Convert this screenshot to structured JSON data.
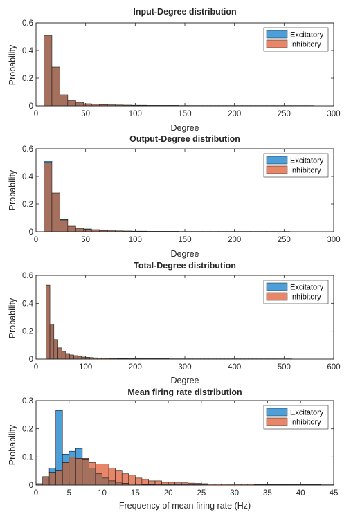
{
  "colors": {
    "excitatory": "#4c9fd8",
    "inhibitory": "#e8866a",
    "overlap": "#a5705e",
    "axis": "#262626"
  },
  "chart_data": [
    {
      "type": "bar",
      "title": "Input-Degree distribution",
      "xlabel": "Degree",
      "ylabel": "Probability",
      "xlim": [
        0,
        300
      ],
      "ylim": [
        0,
        0.6
      ],
      "xticks": [
        "0",
        "50",
        "100",
        "150",
        "200",
        "250",
        "300"
      ],
      "yticks": [
        "0",
        "0.2",
        "0.4",
        "0.6"
      ],
      "legend": {
        "placement": "top-right",
        "entries": [
          "Excitatory",
          "Inhibitory"
        ]
      },
      "bin_start": 8,
      "bin_width": 8,
      "series": [
        {
          "name": "Excitatory",
          "values": [
            0.51,
            0.28,
            0.08,
            0.04,
            0.025,
            0.015,
            0.012,
            0.009,
            0.007,
            0.006,
            0.005,
            0.004,
            0.004,
            0.003,
            0.003,
            0.003,
            0.003,
            0.002,
            0.002,
            0.002,
            0.002,
            0.002,
            0.002,
            0.002,
            0.002,
            0.002,
            0.002,
            0.002,
            0.002,
            0.002,
            0.002,
            0.002,
            0.002,
            0.002
          ]
        },
        {
          "name": "Inhibitory",
          "values": [
            0.51,
            0.28,
            0.08,
            0.04,
            0.025,
            0.015,
            0.012,
            0.009,
            0.007,
            0.006,
            0.005,
            0.004,
            0.004,
            0.003,
            0.003,
            0.003,
            0.003,
            0.002,
            0.002,
            0.002,
            0.002,
            0.002,
            0.002,
            0.002,
            0.002,
            0.002,
            0.002,
            0.002,
            0.002,
            0.002,
            0.002,
            0.002,
            0.002,
            0.002
          ]
        }
      ]
    },
    {
      "type": "bar",
      "title": "Output-Degree distribution",
      "xlabel": "Degree",
      "ylabel": "Probability",
      "xlim": [
        0,
        300
      ],
      "ylim": [
        0,
        0.6
      ],
      "xticks": [
        "0",
        "50",
        "100",
        "150",
        "200",
        "250",
        "300"
      ],
      "yticks": [
        "0",
        "0.2",
        "0.4",
        "0.6"
      ],
      "legend": {
        "placement": "top-right",
        "entries": [
          "Excitatory",
          "Inhibitory"
        ]
      },
      "bin_start": 8,
      "bin_width": 8,
      "series": [
        {
          "name": "Excitatory",
          "values": [
            0.51,
            0.28,
            0.09,
            0.045,
            0.025,
            0.02,
            0.015,
            0.009,
            0.007,
            0.006,
            0.005,
            0.004,
            0.004,
            0.003,
            0.003,
            0.003,
            0.003,
            0.002,
            0.002,
            0.002,
            0.002,
            0.002,
            0.002,
            0.002,
            0.002,
            0.002,
            0.002,
            0.002,
            0.002,
            0.002,
            0.002
          ]
        },
        {
          "name": "Inhibitory",
          "values": [
            0.5,
            0.28,
            0.085,
            0.04,
            0.025,
            0.015,
            0.015,
            0.009,
            0.007,
            0.006,
            0.005,
            0.004,
            0.004,
            0.003,
            0.003,
            0.003,
            0.003,
            0.002,
            0.002,
            0.002,
            0.002,
            0.002,
            0.002,
            0.002,
            0.002,
            0.002,
            0.002,
            0.002,
            0.002,
            0.002,
            0.002
          ]
        }
      ]
    },
    {
      "type": "bar",
      "title": "Total-Degree distribution",
      "xlabel": "Degree",
      "ylabel": "Probability",
      "xlim": [
        0,
        600
      ],
      "ylim": [
        0,
        0.6
      ],
      "xticks": [
        "0",
        "100",
        "200",
        "300",
        "400",
        "500",
        "600"
      ],
      "yticks": [
        "0",
        "0.2",
        "0.4",
        "0.6"
      ],
      "legend": {
        "placement": "top-right",
        "entries": [
          "Excitatory",
          "Inhibitory"
        ]
      },
      "bin_start": 20,
      "bin_width": 8,
      "series": [
        {
          "name": "Excitatory",
          "values": [
            0.53,
            0.25,
            0.14,
            0.08,
            0.055,
            0.04,
            0.03,
            0.025,
            0.02,
            0.015,
            0.013,
            0.011,
            0.009,
            0.008,
            0.007,
            0.006,
            0.005,
            0.005,
            0.004,
            0.004,
            0.004,
            0.003,
            0.003,
            0.003,
            0.003,
            0.003,
            0.003,
            0.003,
            0.003,
            0.003,
            0.003,
            0.002,
            0.002,
            0.002,
            0.002,
            0.002,
            0.002,
            0.002,
            0.002,
            0.002,
            0.002,
            0.002,
            0.002,
            0.002,
            0.002,
            0.002,
            0.002,
            0.002,
            0.002,
            0.002,
            0.002,
            0.002,
            0.002,
            0.002,
            0.002,
            0.002,
            0.002,
            0.002,
            0.002,
            0.002,
            0.002,
            0.002
          ]
        },
        {
          "name": "Inhibitory",
          "values": [
            0.53,
            0.25,
            0.14,
            0.08,
            0.055,
            0.04,
            0.03,
            0.025,
            0.02,
            0.015,
            0.013,
            0.011,
            0.009,
            0.008,
            0.007,
            0.006,
            0.005,
            0.005,
            0.004,
            0.004,
            0.004,
            0.003,
            0.003,
            0.003,
            0.003,
            0.003,
            0.003,
            0.003,
            0.003,
            0.003,
            0.003,
            0.002,
            0.002,
            0.002,
            0.002,
            0.002,
            0.002,
            0.002,
            0.002,
            0.002,
            0.002,
            0.002,
            0.002,
            0.002,
            0.002,
            0.002,
            0.002,
            0.002,
            0.002,
            0.002,
            0.002,
            0.002,
            0.002,
            0.002,
            0.002,
            0.002,
            0.002,
            0.002,
            0.002,
            0.002,
            0.002,
            0.002
          ]
        }
      ]
    },
    {
      "type": "bar",
      "title": "Mean firing rate distribution",
      "xlabel": "Frequency of mean firing rate (Hz)",
      "ylabel": "Probability",
      "xlim": [
        0,
        45
      ],
      "ylim": [
        0,
        0.3
      ],
      "xticks": [
        "0",
        "5",
        "10",
        "15",
        "20",
        "25",
        "30",
        "35",
        "40",
        "45"
      ],
      "yticks": [
        "0",
        "0.1",
        "0.2",
        "0.3"
      ],
      "legend": {
        "placement": "top-right",
        "entries": [
          "Excitatory",
          "Inhibitory"
        ]
      },
      "bin_start": 0,
      "bin_width": 1,
      "series": [
        {
          "name": "Excitatory",
          "values": [
            0.005,
            0.03,
            0.06,
            0.265,
            0.11,
            0.12,
            0.13,
            0.09,
            0.06,
            0.04,
            0.025,
            0.015,
            0.01,
            0.006,
            0.004,
            0.003,
            0.002,
            0.002,
            0.001,
            0.001,
            0.001,
            0.001,
            0.001,
            0.001,
            0.001,
            0.001,
            0,
            0,
            0,
            0,
            0,
            0,
            0,
            0,
            0,
            0,
            0,
            0,
            0,
            0,
            0,
            0,
            0,
            0,
            0
          ]
        },
        {
          "name": "Inhibitory",
          "values": [
            0.005,
            0.03,
            0.045,
            0.05,
            0.08,
            0.1,
            0.095,
            0.095,
            0.08,
            0.075,
            0.075,
            0.06,
            0.05,
            0.04,
            0.035,
            0.025,
            0.02,
            0.015,
            0.015,
            0.01,
            0.01,
            0.008,
            0.008,
            0.007,
            0.006,
            0.005,
            0.004,
            0.004,
            0.004,
            0.003,
            0.003,
            0.003,
            0.003,
            0.002,
            0.002,
            0.002,
            0.002,
            0.002,
            0.002,
            0.002,
            0.002,
            0.002,
            0.002,
            0.001,
            0.001
          ]
        }
      ]
    }
  ]
}
